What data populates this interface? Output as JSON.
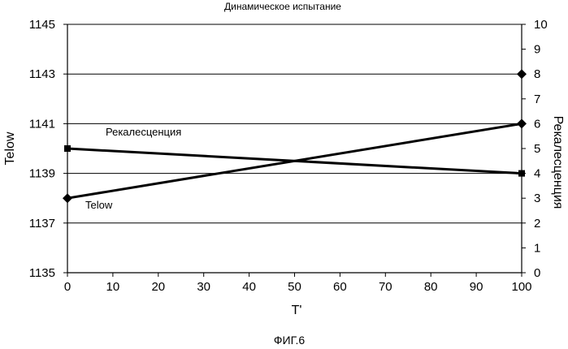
{
  "figure": {
    "caption": "ФИГ.6"
  },
  "chart_data": {
    "type": "line",
    "title": "Динамическое испытание",
    "xlabel": "T'",
    "ylabel": "Telow",
    "y2label": "Рекалесценция",
    "xlim": [
      0,
      100
    ],
    "ylim": [
      1135,
      1145
    ],
    "y2lim": [
      0,
      10
    ],
    "x_ticks": [
      0,
      10,
      20,
      30,
      40,
      50,
      60,
      70,
      80,
      90,
      100
    ],
    "y_ticks": [
      1135,
      1137,
      1139,
      1141,
      1143,
      1145
    ],
    "y2_ticks": [
      0,
      1,
      2,
      3,
      4,
      5,
      6,
      7,
      8,
      9,
      10
    ],
    "grid": "horizontal",
    "series": [
      {
        "name": "Telow",
        "axis": "left",
        "marker": "diamond",
        "points": [
          {
            "x": 0,
            "y": 1138
          },
          {
            "x": 100,
            "y": 1141
          }
        ]
      },
      {
        "name": "Рекалесценция",
        "axis": "right",
        "marker": "square",
        "points": [
          {
            "x": 0,
            "y": 5
          },
          {
            "x": 100,
            "y": 4
          }
        ]
      }
    ],
    "extra_points": [
      {
        "x": 100,
        "y": 1143,
        "axis": "left",
        "marker": "diamond"
      }
    ],
    "series_labels": [
      "Telow",
      "Рекалесценция"
    ]
  }
}
